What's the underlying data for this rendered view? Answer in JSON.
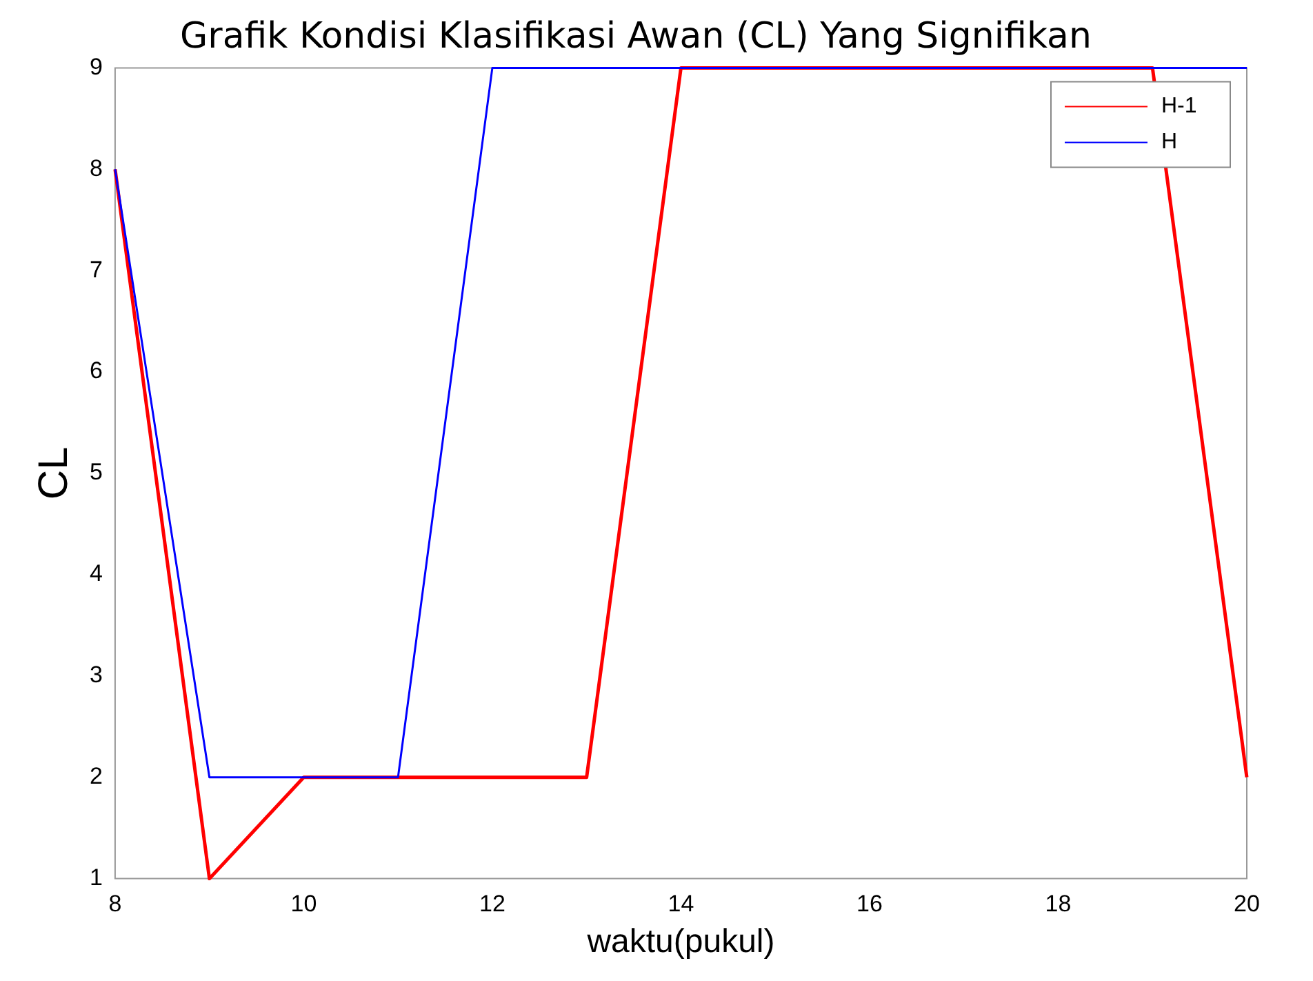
{
  "chart_data": {
    "type": "line",
    "title": "Grafik Kondisi Klasifikasi Awan (CL) Yang Signifikan",
    "xlabel": "waktu(pukul)",
    "ylabel": "CL",
    "x": [
      8,
      9,
      10,
      11,
      12,
      13,
      14,
      15,
      16,
      17,
      18,
      19,
      20
    ],
    "series": [
      {
        "name": "H-1",
        "color": "#ff0000",
        "values": [
          8,
          1,
          2,
          2,
          2,
          2,
          9,
          9,
          9,
          9,
          9,
          9,
          2
        ]
      },
      {
        "name": "H",
        "color": "#0000ff",
        "values": [
          8,
          2,
          2,
          2,
          9,
          9,
          9,
          9,
          9,
          9,
          9,
          9,
          9
        ]
      }
    ],
    "xlim": [
      8,
      20
    ],
    "xticks": [
      8,
      10,
      12,
      14,
      16,
      18,
      20
    ],
    "ylim": [
      1,
      9
    ],
    "yticks": [
      1,
      2,
      3,
      4,
      5,
      6,
      7,
      8,
      9
    ],
    "legend": "top right",
    "grid": false
  }
}
